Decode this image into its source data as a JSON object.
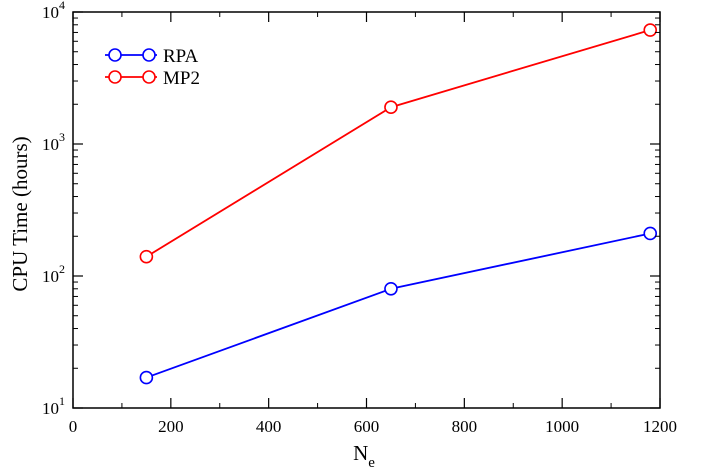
{
  "chart_data": {
    "type": "line",
    "title": "",
    "xlabel": "N",
    "xlabel_subscript": "e",
    "ylabel": "CPU Time (hours)",
    "x_scale": "linear",
    "y_scale": "log",
    "xlim": [
      0,
      1200
    ],
    "ylim": [
      10,
      10000
    ],
    "grid": false,
    "legend_position": "top-left",
    "x_ticks": [
      0,
      200,
      400,
      600,
      800,
      1000,
      1200
    ],
    "x_tick_labels": [
      "0",
      "200",
      "400",
      "600",
      "800",
      "1000",
      "1200"
    ],
    "y_ticks": [
      10,
      100,
      1000,
      10000
    ],
    "y_tick_labels": [
      {
        "base": "10",
        "exp": "1"
      },
      {
        "base": "10",
        "exp": "2"
      },
      {
        "base": "10",
        "exp": "3"
      },
      {
        "base": "10",
        "exp": "4"
      }
    ],
    "series": [
      {
        "name": "RPA",
        "color": "#0000ff",
        "marker": "open-circle",
        "x": [
          150,
          650,
          1180
        ],
        "y": [
          17,
          80,
          210
        ]
      },
      {
        "name": "MP2",
        "color": "#ff0000",
        "marker": "open-circle",
        "x": [
          150,
          650,
          1180
        ],
        "y": [
          140,
          1900,
          7300
        ]
      }
    ]
  }
}
